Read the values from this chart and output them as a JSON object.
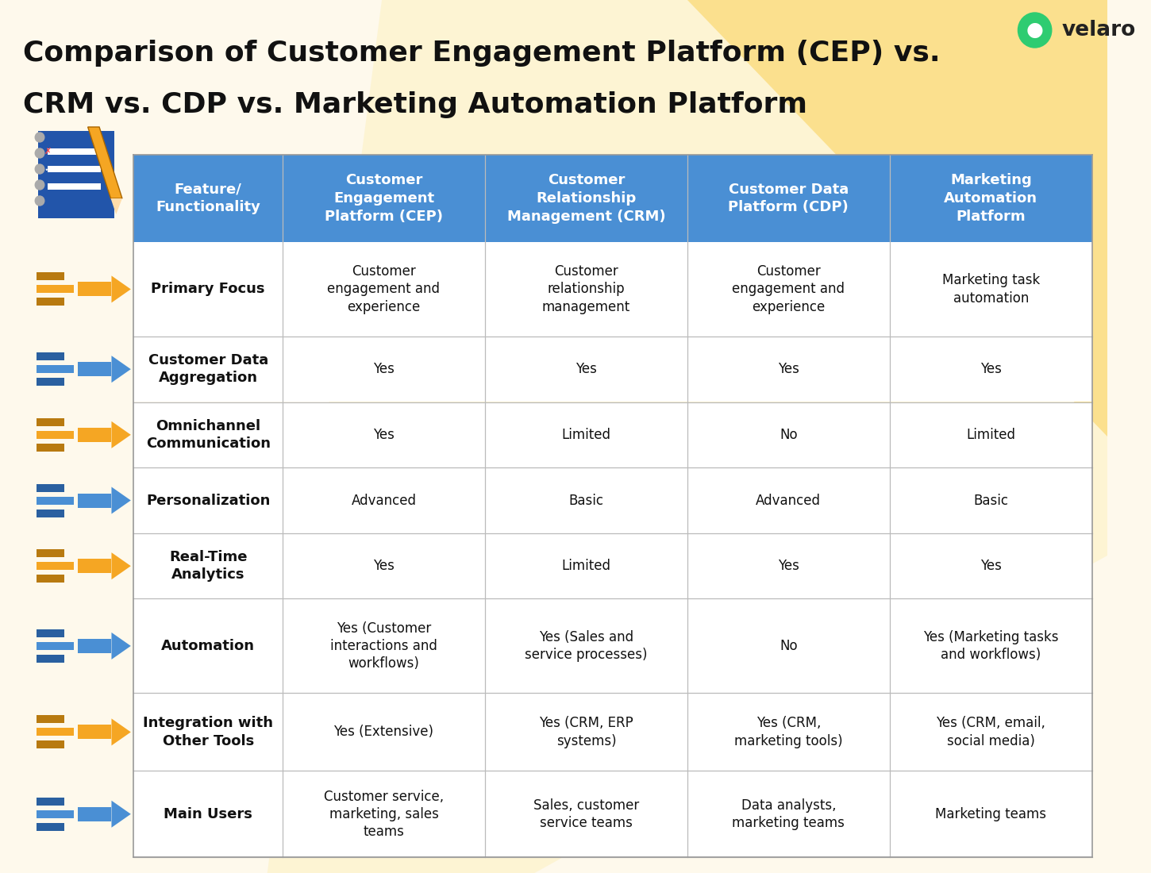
{
  "title_line1": "Comparison of Customer Engagement Platform (CEP) vs.",
  "title_line2": "CRM vs. CDP vs. Marketing Automation Platform",
  "background_color": "#FEF9EC",
  "header_bg_color": "#4A8FD4",
  "header_text_color": "#FFFFFF",
  "divider_color": "#BBBBBB",
  "feature_col_header": "Feature/\nFunctionality",
  "col_headers": [
    "Customer\nEngagement\nPlatform (CEP)",
    "Customer\nRelationship\nManagement (CRM)",
    "Customer Data\nPlatform (CDP)",
    "Marketing\nAutomation\nPlatform"
  ],
  "row_features": [
    "Primary Focus",
    "Customer Data\nAggregation",
    "Omnichannel\nCommunication",
    "Personalization",
    "Real-Time\nAnalytics",
    "Automation",
    "Integration with\nOther Tools",
    "Main Users"
  ],
  "table_data": [
    [
      "Customer\nengagement and\nexperience",
      "Customer\nrelationship\nmanagement",
      "Customer\nengagement and\nexperience",
      "Marketing task\nautomation"
    ],
    [
      "Yes",
      "Yes",
      "Yes",
      "Yes"
    ],
    [
      "Yes",
      "Limited",
      "No",
      "Limited"
    ],
    [
      "Advanced",
      "Basic",
      "Advanced",
      "Basic"
    ],
    [
      "Yes",
      "Limited",
      "Yes",
      "Yes"
    ],
    [
      "Yes (Customer\ninteractions and\nworkflows)",
      "Yes (Sales and\nservice processes)",
      "No",
      "Yes (Marketing tasks\nand workflows)"
    ],
    [
      "Yes (Extensive)",
      "Yes (CRM, ERP\nsystems)",
      "Yes (CRM,\nmarketing tools)",
      "Yes (CRM, email,\nsocial media)"
    ],
    [
      "Customer service,\nmarketing, sales\nteams",
      "Sales, customer\nservice teams",
      "Data analysts,\nmarketing teams",
      "Marketing teams"
    ]
  ],
  "arrow_colors": [
    "#F5A623",
    "#4A8FD4",
    "#F5A623",
    "#4A8FD4",
    "#F5A623",
    "#4A8FD4",
    "#F5A623",
    "#4A8FD4"
  ],
  "title_fontsize": 26,
  "header_fontsize": 13,
  "cell_fontsize": 12,
  "feature_fontsize": 13
}
